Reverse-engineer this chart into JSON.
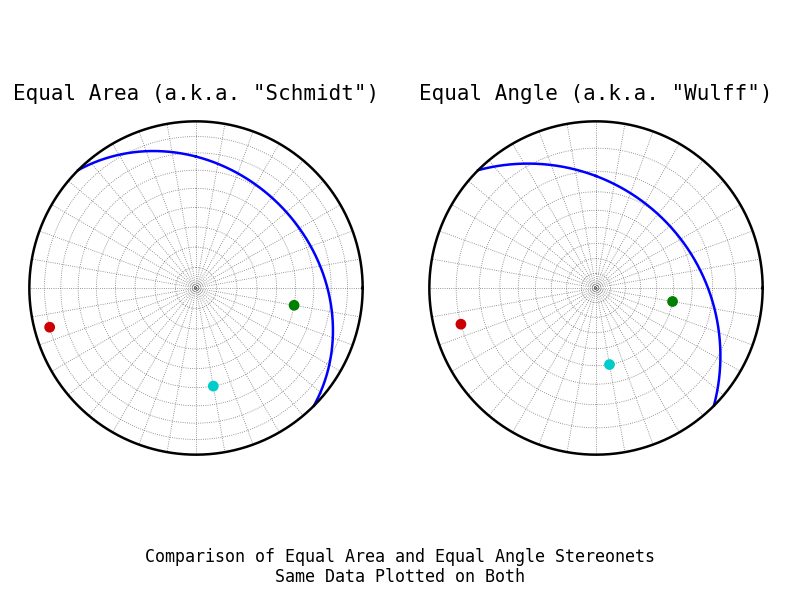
{
  "title_left": "Equal Area (a.k.a. \"Schmidt\")",
  "title_right": "Equal Angle (a.k.a. \"Wulff\")",
  "suptitle_line1": "Comparison of Equal Area and Equal Angle Stereonets",
  "suptitle_line2": "Same Data Plotted on Both",
  "background_color": "#ffffff",
  "circle_color": "black",
  "circle_lw": 1.8,
  "grid_color": "#555555",
  "grid_ls": ":",
  "grid_lw": 0.6,
  "grid_alpha": 0.8,
  "great_circle_color": "blue",
  "great_circle_lw": 1.8,
  "great_circle_strike": 315,
  "great_circle_dip": 30,
  "point_size": 60,
  "points_plunge_bearing": [
    {
      "color": "#cc0000",
      "plunge": 10,
      "bearing": 255
    },
    {
      "color": "#008000",
      "plunge": 40,
      "bearing": 100
    },
    {
      "color": "#00cccc",
      "plunge": 40,
      "bearing": 170
    }
  ],
  "n_dip_lines": 9,
  "n_strike_lines": 18,
  "title_fontsize": 15,
  "suptitle_fontsize": 12
}
